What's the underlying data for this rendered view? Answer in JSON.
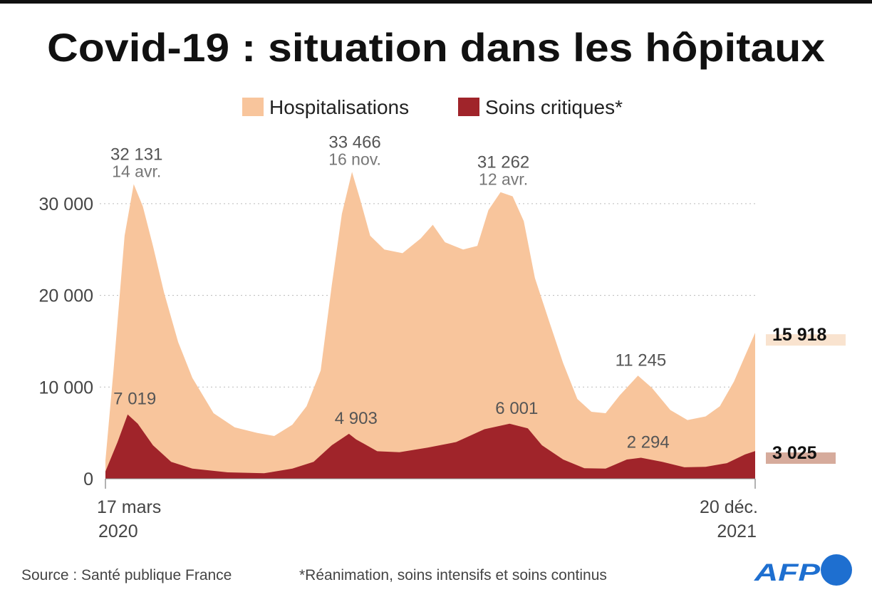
{
  "chart_data": {
    "type": "area",
    "title": "Covid-19 : situation dans les hôpitaux",
    "xlabel": "",
    "ylabel": "",
    "ylim": [
      0,
      35000
    ],
    "yticks": [
      {
        "value": 0,
        "label": "0"
      },
      {
        "value": 10000,
        "label": "10 000"
      },
      {
        "value": 20000,
        "label": "20 000"
      },
      {
        "value": 30000,
        "label": "30 000"
      }
    ],
    "xrange": [
      "2020-03-17",
      "2021-12-20"
    ],
    "xticks": [
      {
        "date": "2020-03-17",
        "line1": "17 mars",
        "line2": "2020"
      },
      {
        "date": "2021-12-20",
        "line1": "20 déc.",
        "line2": "2021"
      }
    ],
    "grid": "horizontal-dotted",
    "legend_position": "top",
    "series": [
      {
        "name": "Hospitalisations",
        "color": "#f8c59c",
        "points": [
          [
            "2020-03-17",
            2000
          ],
          [
            "2020-03-25",
            11800
          ],
          [
            "2020-04-05",
            26500
          ],
          [
            "2020-04-14",
            32131
          ],
          [
            "2020-04-23",
            29700
          ],
          [
            "2020-05-03",
            25400
          ],
          [
            "2020-05-14",
            20300
          ],
          [
            "2020-05-28",
            14900
          ],
          [
            "2020-06-11",
            11000
          ],
          [
            "2020-07-02",
            7150
          ],
          [
            "2020-07-23",
            5600
          ],
          [
            "2020-08-14",
            5000
          ],
          [
            "2020-08-31",
            4660
          ],
          [
            "2020-09-18",
            5900
          ],
          [
            "2020-10-02",
            7900
          ],
          [
            "2020-10-16",
            11800
          ],
          [
            "2020-10-27",
            21100
          ],
          [
            "2020-11-06",
            28900
          ],
          [
            "2020-11-16",
            33466
          ],
          [
            "2020-11-24",
            30500
          ],
          [
            "2020-12-04",
            26500
          ],
          [
            "2020-12-18",
            25000
          ],
          [
            "2021-01-05",
            24600
          ],
          [
            "2021-01-23",
            26200
          ],
          [
            "2021-02-04",
            27700
          ],
          [
            "2021-02-16",
            25800
          ],
          [
            "2021-03-06",
            25000
          ],
          [
            "2021-03-20",
            25400
          ],
          [
            "2021-03-31",
            29300
          ],
          [
            "2021-04-12",
            31262
          ],
          [
            "2021-04-24",
            30800
          ],
          [
            "2021-05-05",
            28100
          ],
          [
            "2021-05-16",
            21900
          ],
          [
            "2021-05-30",
            17200
          ],
          [
            "2021-06-13",
            12600
          ],
          [
            "2021-06-27",
            8700
          ],
          [
            "2021-07-11",
            7300
          ],
          [
            "2021-07-25",
            7150
          ],
          [
            "2021-08-08",
            9100
          ],
          [
            "2021-08-26",
            11245
          ],
          [
            "2021-09-09",
            9900
          ],
          [
            "2021-09-27",
            7500
          ],
          [
            "2021-10-14",
            6400
          ],
          [
            "2021-11-01",
            6800
          ],
          [
            "2021-11-15",
            7900
          ],
          [
            "2021-11-29",
            10600
          ],
          [
            "2021-12-10",
            13400
          ],
          [
            "2021-12-20",
            15918
          ]
        ]
      },
      {
        "name": "Soins critiques*",
        "color": "#a0242a",
        "points": [
          [
            "2020-03-17",
            800
          ],
          [
            "2020-03-29",
            4000
          ],
          [
            "2020-04-08",
            7019
          ],
          [
            "2020-04-18",
            6000
          ],
          [
            "2020-05-03",
            3650
          ],
          [
            "2020-05-21",
            1850
          ],
          [
            "2020-06-11",
            1100
          ],
          [
            "2020-07-16",
            700
          ],
          [
            "2020-08-21",
            600
          ],
          [
            "2020-09-18",
            1100
          ],
          [
            "2020-10-09",
            1850
          ],
          [
            "2020-10-27",
            3650
          ],
          [
            "2020-11-13",
            4903
          ],
          [
            "2020-11-20",
            4300
          ],
          [
            "2020-12-11",
            3000
          ],
          [
            "2021-01-02",
            2900
          ],
          [
            "2021-01-30",
            3400
          ],
          [
            "2021-02-27",
            4000
          ],
          [
            "2021-03-27",
            5400
          ],
          [
            "2021-04-21",
            6001
          ],
          [
            "2021-05-09",
            5500
          ],
          [
            "2021-05-23",
            3650
          ],
          [
            "2021-06-13",
            2100
          ],
          [
            "2021-07-04",
            1150
          ],
          [
            "2021-07-25",
            1100
          ],
          [
            "2021-08-15",
            2100
          ],
          [
            "2021-08-29",
            2294
          ],
          [
            "2021-09-19",
            1850
          ],
          [
            "2021-10-11",
            1250
          ],
          [
            "2021-11-01",
            1300
          ],
          [
            "2021-11-22",
            1700
          ],
          [
            "2021-12-10",
            2650
          ],
          [
            "2021-12-20",
            3025
          ]
        ]
      }
    ],
    "annotations": [
      {
        "series": 0,
        "date": "2020-04-14",
        "value": 32131,
        "label": "32 131",
        "date_label": "14 avr."
      },
      {
        "series": 0,
        "date": "2020-11-16",
        "value": 33466,
        "label": "33 466",
        "date_label": "16 nov."
      },
      {
        "series": 0,
        "date": "2021-04-12",
        "value": 31262,
        "label": "31 262",
        "date_label": "12 avr."
      },
      {
        "series": 0,
        "date": "2021-08-26",
        "value": 11245,
        "label": "11 245",
        "date_label": ""
      },
      {
        "series": 1,
        "date": "2020-04-08",
        "value": 7019,
        "label": "7 019",
        "date_label": ""
      },
      {
        "series": 1,
        "date": "2020-11-13",
        "value": 4903,
        "label": "4 903",
        "date_label": ""
      },
      {
        "series": 1,
        "date": "2021-04-21",
        "value": 6001,
        "label": "6 001",
        "date_label": ""
      },
      {
        "series": 1,
        "date": "2021-08-29",
        "value": 2294,
        "label": "2 294",
        "date_label": ""
      }
    ],
    "end_labels": [
      {
        "series": 0,
        "label": "15 918",
        "bg": "#f9e3cf"
      },
      {
        "series": 1,
        "label": "3 025",
        "bg": "#d6ab9c"
      }
    ]
  },
  "footer": {
    "source": "Source : Santé publique France",
    "note": "*Réanimation, soins intensifs et soins continus",
    "logo_text": "AFP",
    "logo_color": "#1e6fd0"
  }
}
